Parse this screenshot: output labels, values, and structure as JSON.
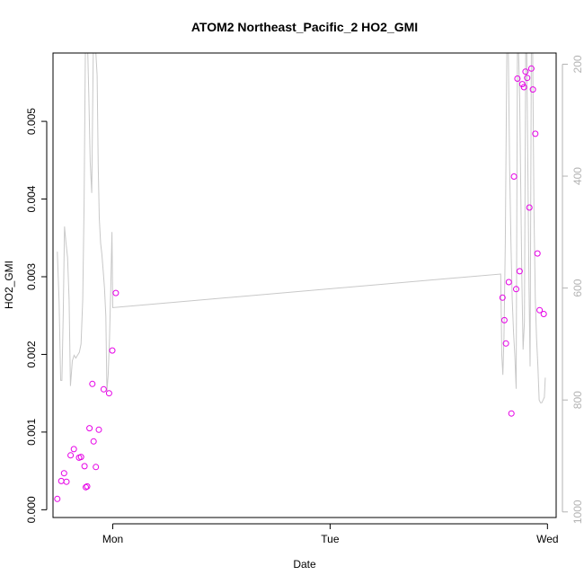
{
  "chart_data": {
    "type": "scatter",
    "title": "ATOM2 Northeast_Pacific_2 HO2_GMI",
    "xlabel": "Date",
    "ylabel": "HO2_GMI",
    "x_tick_labels": [
      "Mon",
      "Tue",
      "Wed"
    ],
    "x_tick_values": [
      1,
      2,
      3
    ],
    "xlim": [
      0.725,
      3.04
    ],
    "ylim": [
      -0.0001,
      0.00588
    ],
    "y_ticks": [
      0,
      0.001,
      0.002,
      0.003,
      0.004,
      0.005
    ],
    "y2_ticks": [
      200,
      400,
      600,
      800,
      1000
    ],
    "y2lim": [
      1010,
      180
    ],
    "grid": false,
    "legend": "none",
    "colors": {
      "points": "#e600e6",
      "line": "#c8c8c8",
      "right_axis": "#b3b3b3",
      "frame": "#000000"
    },
    "series": [
      {
        "kind": "points",
        "x": [
          0.745,
          0.763,
          0.776,
          0.787,
          0.806,
          0.821,
          0.845,
          0.854,
          0.87,
          0.876,
          0.882,
          0.893,
          0.906,
          0.912,
          0.922,
          0.936,
          0.958,
          0.983,
          0.998,
          1.014,
          2.793,
          2.802,
          2.809,
          2.822,
          2.834,
          2.846,
          2.856,
          2.862,
          2.872,
          2.884,
          2.892,
          2.899,
          2.907,
          2.917,
          2.926,
          2.933,
          2.944,
          2.954,
          2.964,
          2.983
        ],
        "y": [
          0.00014,
          0.00037,
          0.00047,
          0.00036,
          0.0007,
          0.00078,
          0.00067,
          0.00068,
          0.00056,
          0.00029,
          0.0003,
          0.00105,
          0.00162,
          0.00088,
          0.00055,
          0.00103,
          0.00155,
          0.0015,
          0.00205,
          0.00279,
          0.00273,
          0.00244,
          0.00214,
          0.00293,
          0.00124,
          0.00429,
          0.00284,
          0.00555,
          0.00307,
          0.00548,
          0.00544,
          0.00564,
          0.00556,
          0.00389,
          0.00568,
          0.00541,
          0.00484,
          0.0033,
          0.00257,
          0.00252
        ]
      },
      {
        "kind": "line",
        "axis": "right",
        "x": [
          0.745,
          0.753,
          0.76,
          0.766,
          0.772,
          0.778,
          0.785,
          0.792,
          0.799,
          0.805,
          0.814,
          0.822,
          0.83,
          0.838,
          0.846,
          0.854,
          0.862,
          0.868,
          0.874,
          0.88,
          0.885,
          0.89,
          0.896,
          0.903,
          0.91,
          0.916,
          0.922,
          0.928,
          0.933,
          0.938,
          0.944,
          0.95,
          0.956,
          0.962,
          0.968,
          0.973,
          0.979,
          0.985,
          0.991,
          0.996,
          1.0,
          2.785,
          2.79,
          2.795,
          2.8,
          2.806,
          2.813,
          2.82,
          2.826,
          2.832,
          2.838,
          2.844,
          2.85,
          2.856,
          2.862,
          2.867,
          2.872,
          2.877,
          2.882,
          2.888,
          2.894,
          2.9,
          2.905,
          2.91,
          2.915,
          2.92,
          2.926,
          2.932,
          2.938,
          2.944,
          2.95,
          2.956,
          2.962,
          2.968,
          2.974,
          2.98,
          2.986,
          2.99
        ],
        "y": [
          535,
          625,
          765,
          765,
          645,
          490,
          520,
          545,
          620,
          775,
          730,
          720,
          725,
          720,
          715,
          700,
          620,
          450,
          180,
          180,
          180,
          260,
          375,
          430,
          180,
          180,
          180,
          220,
          380,
          475,
          520,
          540,
          570,
          600,
          650,
          785,
          755,
          690,
          600,
          500,
          635,
          575,
          720,
          755,
          690,
          520,
          180,
          180,
          380,
          520,
          620,
          680,
          720,
          780,
          180,
          180,
          260,
          420,
          580,
          710,
          660,
          180,
          180,
          400,
          600,
          740,
          180,
          180,
          460,
          620,
          690,
          740,
          800,
          805,
          805,
          800,
          795,
          760
        ]
      }
    ]
  }
}
